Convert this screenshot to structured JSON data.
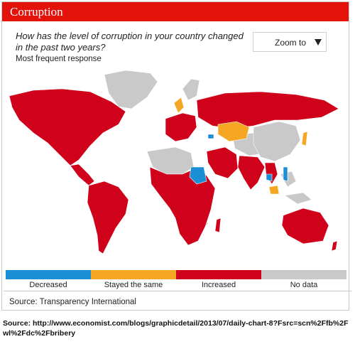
{
  "header": {
    "title": "Corruption"
  },
  "question": "How has the level of corruption in your country changed in the past two years?",
  "subtitle": "Most frequent response",
  "zoom": {
    "label": "Zoom to"
  },
  "colors": {
    "decreased": "#1a8fd6",
    "stayed": "#f5a623",
    "increased": "#d0021b",
    "nodata": "#c9c9c9",
    "header": "#e3120b"
  },
  "legend": [
    {
      "key": "decreased",
      "label": "Decreased"
    },
    {
      "key": "stayed",
      "label": "Stayed the same"
    },
    {
      "key": "increased",
      "label": "Increased"
    },
    {
      "key": "nodata",
      "label": "No data"
    }
  ],
  "source": "Source: Transparency International",
  "credit": "Source: http://www.economist.com/blogs/graphicdetail/2013/07/daily-chart-8?Fsrc=scn%2Ffb%2Fwl%2Fdc%2Fbribery"
}
